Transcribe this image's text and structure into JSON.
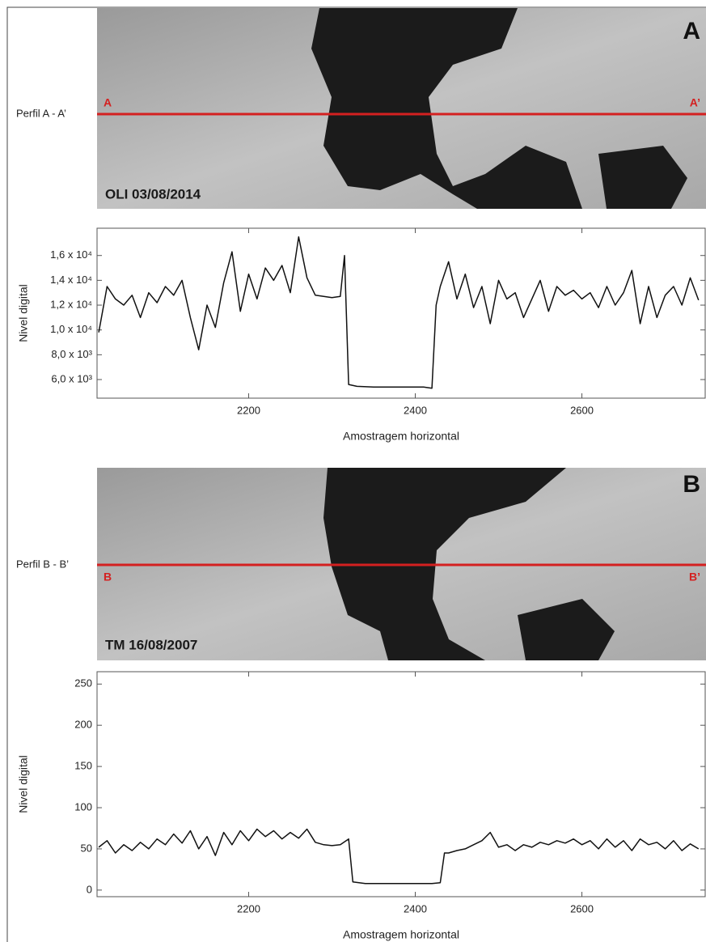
{
  "chart_data": [
    {
      "type": "line",
      "ylabel": "Nivel digital",
      "xlabel": "Amostragem horizontal",
      "color": "#111111",
      "xlim": [
        2018,
        2748
      ],
      "xticks": [
        2200,
        2400,
        2600
      ],
      "ylim": [
        4500,
        18200
      ],
      "yticks": [
        {
          "value": 6000,
          "label": "6,0 x 10³"
        },
        {
          "value": 8000,
          "label": "8,0 x 10³"
        },
        {
          "value": 10000,
          "label": "1,0 x 10⁴"
        },
        {
          "value": 12000,
          "label": "1,2 x 10⁴"
        },
        {
          "value": 14000,
          "label": "1,4 x 10⁴"
        },
        {
          "value": 16000,
          "label": "1,6 x 10⁴"
        }
      ],
      "x": [
        2020,
        2030,
        2040,
        2050,
        2060,
        2070,
        2080,
        2090,
        2100,
        2110,
        2120,
        2130,
        2140,
        2150,
        2160,
        2170,
        2180,
        2190,
        2200,
        2210,
        2220,
        2230,
        2240,
        2250,
        2260,
        2270,
        2280,
        2290,
        2300,
        2310,
        2315,
        2320,
        2330,
        2350,
        2370,
        2390,
        2410,
        2420,
        2425,
        2430,
        2440,
        2450,
        2460,
        2470,
        2480,
        2490,
        2500,
        2510,
        2520,
        2530,
        2540,
        2550,
        2560,
        2570,
        2580,
        2590,
        2600,
        2610,
        2620,
        2630,
        2640,
        2650,
        2660,
        2670,
        2680,
        2690,
        2700,
        2710,
        2720,
        2730,
        2740
      ],
      "values": [
        9800,
        13500,
        12500,
        12000,
        12800,
        11000,
        13000,
        12200,
        13500,
        12800,
        14000,
        11000,
        8400,
        12000,
        10200,
        13800,
        16300,
        11500,
        14500,
        12500,
        15000,
        14000,
        15200,
        13000,
        17500,
        14200,
        12800,
        12700,
        12600,
        12700,
        16000,
        5600,
        5450,
        5400,
        5400,
        5400,
        5400,
        5300,
        12000,
        13500,
        15500,
        12500,
        14500,
        11800,
        13500,
        10500,
        14000,
        12500,
        13000,
        11000,
        12500,
        14000,
        11500,
        13500,
        12800,
        13200,
        12500,
        13000,
        11800,
        13500,
        12000,
        13000,
        14800,
        10500,
        13500,
        11000,
        12800,
        13500,
        12000,
        14200,
        12400
      ]
    },
    {
      "type": "line",
      "ylabel": "Nivel digital",
      "xlabel": "Amostragem horizontal",
      "color": "#111111",
      "xlim": [
        2018,
        2748
      ],
      "xticks": [
        2200,
        2400,
        2600
      ],
      "ylim": [
        -8,
        265
      ],
      "yticks": [
        0,
        50,
        100,
        150,
        200,
        250
      ],
      "x": [
        2020,
        2030,
        2040,
        2050,
        2060,
        2070,
        2080,
        2090,
        2100,
        2110,
        2120,
        2130,
        2140,
        2150,
        2160,
        2170,
        2180,
        2190,
        2200,
        2210,
        2220,
        2230,
        2240,
        2250,
        2260,
        2270,
        2280,
        2290,
        2300,
        2310,
        2320,
        2325,
        2340,
        2360,
        2380,
        2400,
        2420,
        2430,
        2435,
        2440,
        2450,
        2460,
        2470,
        2480,
        2490,
        2500,
        2510,
        2520,
        2530,
        2540,
        2550,
        2560,
        2570,
        2580,
        2590,
        2600,
        2610,
        2620,
        2630,
        2640,
        2650,
        2660,
        2670,
        2680,
        2690,
        2700,
        2710,
        2720,
        2730,
        2740
      ],
      "values": [
        52,
        60,
        45,
        55,
        48,
        58,
        50,
        62,
        55,
        68,
        57,
        72,
        50,
        65,
        42,
        70,
        55,
        72,
        60,
        74,
        65,
        72,
        62,
        70,
        63,
        74,
        58,
        55,
        54,
        55,
        62,
        10,
        8,
        8,
        8,
        8,
        8,
        9,
        45,
        45,
        48,
        50,
        55,
        60,
        70,
        52,
        55,
        48,
        55,
        52,
        58,
        55,
        60,
        57,
        62,
        55,
        60,
        50,
        62,
        52,
        60,
        48,
        62,
        55,
        58,
        50,
        60,
        48,
        56,
        50
      ]
    }
  ],
  "panels": [
    {
      "profile": "Perfil A - A’",
      "start": "A",
      "end": "A’",
      "letter": "A",
      "caption": "OLI  03/08/2014"
    },
    {
      "profile": "Perfil B - B’",
      "start": "B",
      "end": "B’",
      "letter": "B",
      "caption": "TM 16/08/2007"
    }
  ]
}
